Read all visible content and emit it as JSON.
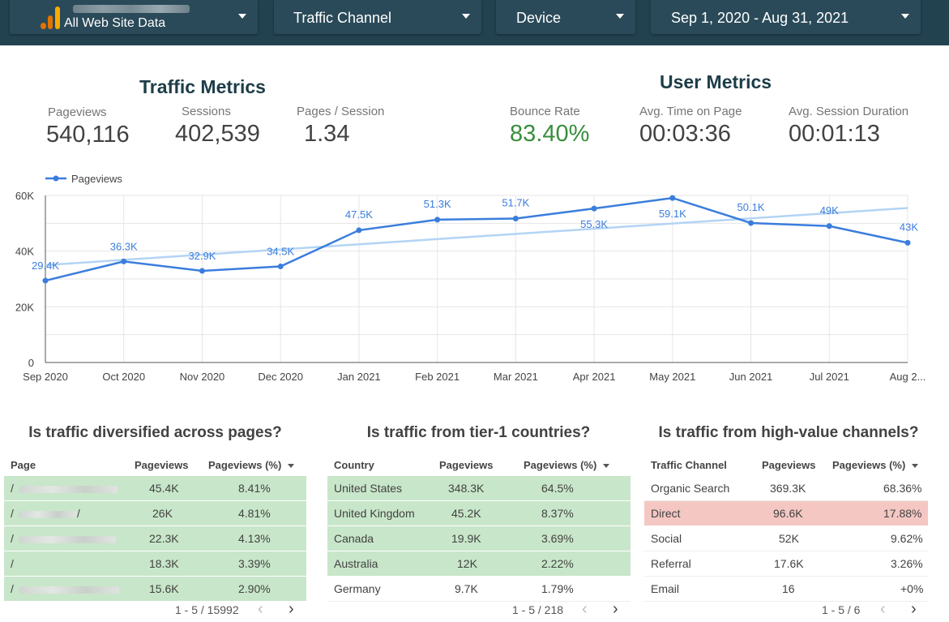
{
  "filters": {
    "account": {
      "label": "All Web Site Data"
    },
    "channel": {
      "label": "Traffic Channel"
    },
    "device": {
      "label": "Device"
    },
    "date": {
      "label": "Sep 1, 2020 - Aug 31, 2021"
    }
  },
  "traffic_metrics": {
    "title": "Traffic Metrics",
    "pageviews": {
      "label": "Pageviews",
      "value": "540,116"
    },
    "sessions": {
      "label": "Sessions",
      "value": "402,539"
    },
    "pages_session": {
      "label": "Pages / Session",
      "value": "1.34"
    }
  },
  "user_metrics": {
    "title": "User Metrics",
    "bounce_rate": {
      "label": "Bounce Rate",
      "value": "83.40%"
    },
    "avg_time": {
      "label": "Avg. Time on Page",
      "value": "00:03:36"
    },
    "avg_session": {
      "label": "Avg. Session Duration",
      "value": "00:01:13"
    }
  },
  "colors": {
    "line": "#3b7ddd",
    "trend": "#b3d4f5",
    "green_value": "#388e3c",
    "highlight_green": "#c8e6c9",
    "highlight_red": "#f4c7c3"
  },
  "chart_data": {
    "type": "line",
    "legend": "Pageviews",
    "legend_position": "top-left",
    "categories": [
      "Sep 2020",
      "Oct 2020",
      "Nov 2020",
      "Dec 2020",
      "Jan 2021",
      "Feb 2021",
      "Mar 2021",
      "Apr 2021",
      "May 2021",
      "Jun 2021",
      "Jul 2021",
      "Aug 2..."
    ],
    "series": [
      {
        "name": "Pageviews",
        "values": [
          29400,
          36300,
          32900,
          34500,
          47500,
          51300,
          51700,
          55300,
          59100,
          50100,
          49000,
          43000
        ],
        "labels": [
          "29.4K",
          "36.3K",
          "32.9K",
          "34.5K",
          "47.5K",
          "51.3K",
          "51.7K",
          "55.3K",
          "59.1K",
          "50.1K",
          "49K",
          "43K"
        ]
      }
    ],
    "trendline": {
      "start": 35000,
      "end": 55500
    },
    "y_ticks": [
      "0",
      "20K",
      "40K",
      "60K"
    ],
    "ylim": [
      0,
      60000
    ],
    "grid": true
  },
  "pages_table": {
    "title": "Is traffic diversified across pages?",
    "columns": [
      "Page",
      "Pageviews",
      "Pageviews (%)"
    ],
    "rows": [
      {
        "page": "/",
        "views": "45.4K",
        "pct": "8.41%"
      },
      {
        "page": "/",
        "views": "26K",
        "pct": "4.81%"
      },
      {
        "page": "/",
        "views": "22.3K",
        "pct": "4.13%"
      },
      {
        "page": "/",
        "views": "18.3K",
        "pct": "3.39%"
      },
      {
        "page": "/",
        "views": "15.6K",
        "pct": "2.90%"
      }
    ],
    "pager": "1 - 5 / 15992"
  },
  "countries_table": {
    "title": "Is traffic from tier-1 countries?",
    "columns": [
      "Country",
      "Pageviews",
      "Pageviews (%)"
    ],
    "rows": [
      {
        "country": "United States",
        "views": "348.3K",
        "pct": "64.5%"
      },
      {
        "country": "United Kingdom",
        "views": "45.2K",
        "pct": "8.37%"
      },
      {
        "country": "Canada",
        "views": "19.9K",
        "pct": "3.69%"
      },
      {
        "country": "Australia",
        "views": "12K",
        "pct": "2.22%"
      },
      {
        "country": "Germany",
        "views": "9.7K",
        "pct": "1.79%"
      }
    ],
    "pager": "1 - 5 / 218"
  },
  "channels_table": {
    "title": "Is traffic from high-value channels?",
    "columns": [
      "Traffic Channel",
      "Pageviews",
      "Pageviews (%)"
    ],
    "rows": [
      {
        "channel": "Organic Search",
        "views": "369.3K",
        "pct": "68.36%"
      },
      {
        "channel": "Direct",
        "views": "96.6K",
        "pct": "17.88%"
      },
      {
        "channel": "Social",
        "views": "52K",
        "pct": "9.62%"
      },
      {
        "channel": "Referral",
        "views": "17.6K",
        "pct": "3.26%"
      },
      {
        "channel": "Email",
        "views": "16",
        "pct": "+0%"
      }
    ],
    "pager": "1 - 5 / 6"
  }
}
